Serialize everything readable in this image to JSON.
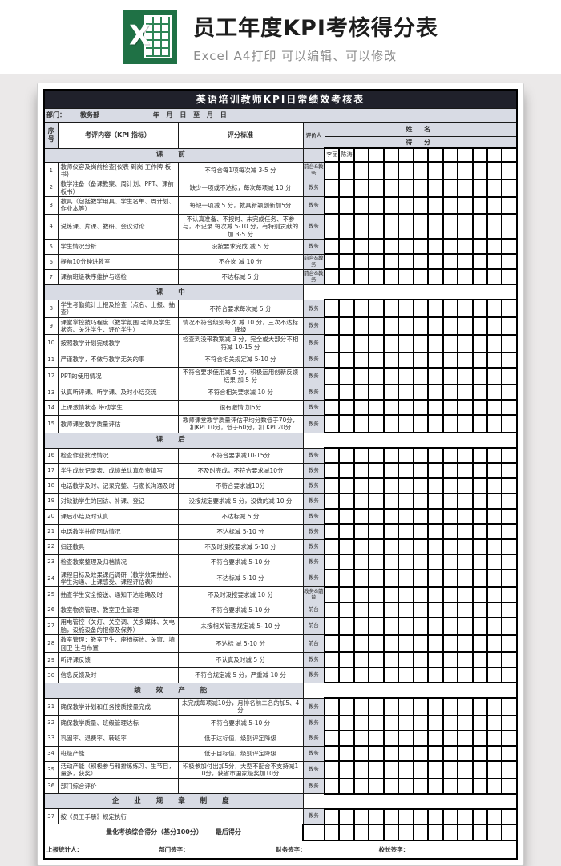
{
  "colors": {
    "excel_green": "#1f7145",
    "table_header_bar": "#20212b",
    "cell_gray": "#d8dbe4",
    "page_bg": "#ebe9e9"
  },
  "banner": {
    "icon_letter": "X",
    "title": "员工年度KPI考核得分表",
    "subtitle": "Excel A4打印 可以编辑、可以修改"
  },
  "table": {
    "title": "英语培训教师KPI日常绩效考核表",
    "dept_label": "部门：",
    "dept_value": "教务部",
    "date_text": "年 月 日 至 月 日",
    "headers": {
      "no": "序号",
      "content": "考评内容（KPI 指标）",
      "criteria": "评分标准",
      "evaluator": "评价人",
      "name": "姓  名",
      "score": "得  分"
    },
    "names": [
      "李丽",
      "陈涛",
      "",
      "",
      "",
      "",
      "",
      "",
      "",
      "",
      "",
      "",
      ""
    ],
    "sections": [
      {
        "label": "课 前",
        "with_names": true,
        "rows": [
          {
            "no": "1",
            "content": "教师仪容及岗前检查(仪表 到岗 工作牌 板书)",
            "criteria": "不符合每1项每次减 3-5 分",
            "evaluator": "前台&教务"
          },
          {
            "no": "2",
            "content": "教学准备（备课教案、周计划、PPT、课前板书）",
            "criteria": "缺少一项或不达标，每次每项减 10 分",
            "evaluator": "教务"
          },
          {
            "no": "3",
            "content": "教具（包括教学用具、学生名单、周计划、作业本等）",
            "criteria": "每缺一项减 5 分，教具新颖创新加5分",
            "evaluator": "教务"
          },
          {
            "no": "4",
            "content": "说练课、片课、教研、会议讨论",
            "criteria": "不认真准备、不按时、未完成任务、不参与，不记录 每次减 5-10 分，有特别贡献的加 3-5 分",
            "evaluator": "教务"
          },
          {
            "no": "5",
            "content": "学生情况分析",
            "criteria": "没按要求完成 减 5 分",
            "evaluator": "教务"
          },
          {
            "no": "6",
            "content": "提前10分钟进教室",
            "criteria": "不在岗 减 10 分",
            "evaluator": "前台&教务"
          },
          {
            "no": "7",
            "content": "课前班级秩序维护与巡检",
            "criteria": "不达标减 5 分",
            "evaluator": "前台&教务"
          }
        ]
      },
      {
        "label": "课 中",
        "with_names": false,
        "rows": [
          {
            "no": "8",
            "content": "学生考勤统计上报及检查（点名、上报、抽查）",
            "criteria": "不符合要求每次减 5 分",
            "evaluator": "教务"
          },
          {
            "no": "9",
            "content": "课堂掌控技巧程度（教学氛围 老师及学生状态、关注学生、评价学生）",
            "criteria": "情况不符合级别每次 减 10 分，三次不达标降级",
            "evaluator": "教务"
          },
          {
            "no": "10",
            "content": "按照教学计划完成教学",
            "criteria": "检查到没带教案减 3 分，完全或大部分不相符减 10-15 分",
            "evaluator": "教务"
          },
          {
            "no": "11",
            "content": "严谨教学，不做与教学无关的事",
            "criteria": "不符合相关规定减 5-10 分",
            "evaluator": "教务"
          },
          {
            "no": "12",
            "content": "PPT的使用情况",
            "criteria": "不符合要求使用减 5 分，积极运用创新反馈结果 加 5 分",
            "evaluator": "教务"
          },
          {
            "no": "13",
            "content": "认真听评课、听学课、及时小结交流",
            "criteria": "不符合相关要求减 10 分",
            "evaluator": "教务"
          },
          {
            "no": "14",
            "content": "上课激情状态 带动学生",
            "criteria": "很有激情 加5分",
            "evaluator": "教务"
          },
          {
            "no": "15",
            "content": "教师课堂教学质量评估",
            "criteria": "教师课堂教学质量评估平均分数低于70分，扣KPI 10分，低于60分，扣 KPI 20分",
            "evaluator": "教务"
          }
        ]
      },
      {
        "label": "课 后",
        "with_names": false,
        "rows": [
          {
            "no": "16",
            "content": "检查作业批改情况",
            "criteria": "不符合要求减10-15分",
            "evaluator": "教务"
          },
          {
            "no": "17",
            "content": "学生成长记录表、成绩单认真负责填写",
            "criteria": "不及时完成，不符合要求减10分",
            "evaluator": "教务"
          },
          {
            "no": "18",
            "content": "电话教学及时、记录完整、与家长沟通及时",
            "criteria": "不符合要求减10分",
            "evaluator": "教务"
          },
          {
            "no": "19",
            "content": "对缺勤学生的回访、补课、登记",
            "criteria": "没按规定要求减 5 分，没做的减 10 分",
            "evaluator": "教务"
          },
          {
            "no": "20",
            "content": "课后小结及时认真",
            "criteria": "不达标减 5 分",
            "evaluator": "教务"
          },
          {
            "no": "21",
            "content": "电话教学抽查回访情况",
            "criteria": "不达标减 5-10 分",
            "evaluator": "教务"
          },
          {
            "no": "22",
            "content": "归还教具",
            "criteria": "不及时没按要求减 5-10 分",
            "evaluator": "教务"
          },
          {
            "no": "23",
            "content": "检查教案整理及归档情况",
            "criteria": "不符合要求减 5-10 分",
            "evaluator": "教务"
          },
          {
            "no": "24",
            "content": "课程目标及效果课后调研（教学效果抽检、学生沟通、上课感受、课程评估表）",
            "criteria": "不达标减 5-10 分",
            "evaluator": "教务"
          },
          {
            "no": "25",
            "content": "抽查学生安全接送、通知下达准确及时",
            "criteria": "不及时没按要求减 10 分",
            "evaluator": "教务&前台"
          },
          {
            "no": "26",
            "content": "教室物资管理、教室卫生管理",
            "criteria": "不符合要求减 5-10 分",
            "evaluator": "前台"
          },
          {
            "no": "27",
            "content": "用电管控（关灯、关空调、关多媒体、关电脑，设施设备的报修及保养）",
            "criteria": "未按相关管理规定减 5- 10 分",
            "evaluator": "前台"
          },
          {
            "no": "28",
            "content": "教室管理：教室卫生、座椅摆放、关窗、墙面卫 生与布置",
            "criteria": "不达标 减 5-10 分",
            "evaluator": "前台"
          },
          {
            "no": "29",
            "content": "听评课反馈",
            "criteria": "不认真及时减 5 分",
            "evaluator": "教务"
          },
          {
            "no": "30",
            "content": "信息反馈及时",
            "criteria": "不符合规定减 5 分，严重减 10 分",
            "evaluator": "教务"
          }
        ]
      },
      {
        "label": "绩 效 产 能",
        "with_names": false,
        "rows": [
          {
            "no": "31",
            "content": "确保教学计划和任务按质按量完成",
            "criteria": "未完成每项减10分，月排名前二名的加5、4分",
            "evaluator": "教务"
          },
          {
            "no": "32",
            "content": "确保教学质量、班级管理达标",
            "criteria": "不符合要求减 5-10 分",
            "evaluator": "教务"
          },
          {
            "no": "33",
            "content": "巩固率、退费率、转班率",
            "criteria": "低于达标值，级别评定降级",
            "evaluator": "教务"
          },
          {
            "no": "34",
            "content": "班级产能",
            "criteria": "低于目标值，级别评定降级",
            "evaluator": "教务"
          },
          {
            "no": "35",
            "content": "活动产能（积极参与和排练练习、生节目，量多，获奖）",
            "criteria": "积极参加付出加5分，大型不配合不支持减10分，获省市国家级奖加10分",
            "evaluator": "教务"
          },
          {
            "no": "36",
            "content": "部门综合评价",
            "criteria": "",
            "evaluator": "教务"
          }
        ]
      },
      {
        "label": "企 业 规 章 制 度",
        "with_names": false,
        "rows": [
          {
            "no": "37",
            "content": "按《员工手册》规定执行",
            "criteria": null,
            "evaluator": "教务"
          }
        ]
      }
    ],
    "total_row": {
      "label": "量化考核综合得分（基分100分）",
      "label2": "最后得分"
    },
    "footer": [
      "上报统计人：",
      "部门签字：",
      "财务签字：",
      "校长签字："
    ]
  }
}
